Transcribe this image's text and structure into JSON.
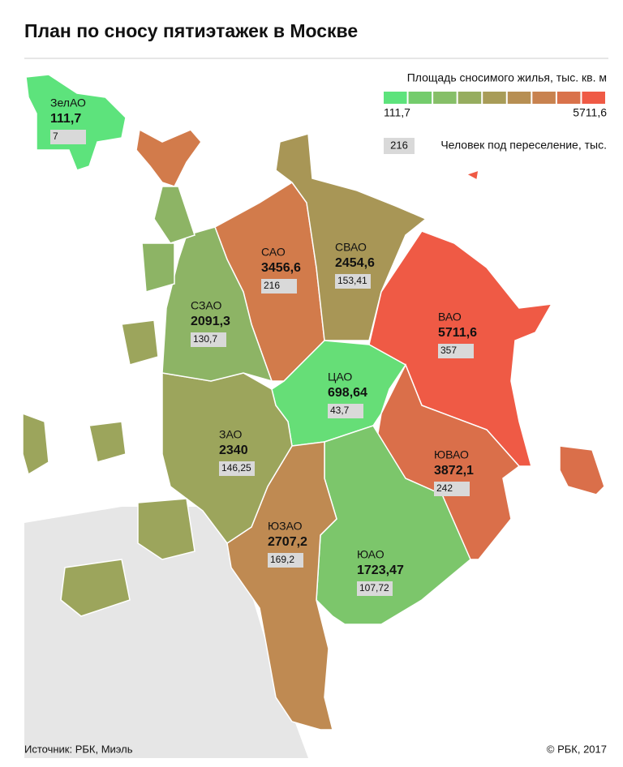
{
  "header": {
    "title": "План по сносу пятиэтажек в Москве"
  },
  "legend": {
    "title": "Площадь сносимого жилья, тыс. кв. м",
    "min_label": "111,7",
    "max_label": "5711,6",
    "colors": [
      "#5de37c",
      "#74cc6c",
      "#86bf68",
      "#96ad5f",
      "#a89c58",
      "#b78f53",
      "#c8824f",
      "#d9724b",
      "#ef5a45"
    ],
    "people_sample": "216",
    "people_label": "Человек под переселение, тыс."
  },
  "districts": [
    {
      "name": "ЗелАО",
      "area": "111,7",
      "people": "7",
      "color": "#5de37c"
    },
    {
      "name": "САО",
      "area": "3456,6",
      "people": "216",
      "color": "#d27b4b"
    },
    {
      "name": "СВАО",
      "area": "2454,6",
      "people": "153,41",
      "color": "#a89656"
    },
    {
      "name": "ВАО",
      "area": "5711,6",
      "people": "357",
      "color": "#ef5a45"
    },
    {
      "name": "ЦАО",
      "area": "698,64",
      "people": "43,7",
      "color": "#66de77"
    },
    {
      "name": "ЮВАО",
      "area": "3872,1",
      "people": "242",
      "color": "#da6f4a"
    },
    {
      "name": "ЮАО",
      "area": "1723,47",
      "people": "107,72",
      "color": "#7cc66b"
    },
    {
      "name": "ЮЗАО",
      "area": "2707,2",
      "people": "169,2",
      "color": "#bf8a52"
    },
    {
      "name": "ЗАО",
      "area": "2340",
      "people": "146,25",
      "color": "#9ca55c"
    },
    {
      "name": "СЗАО",
      "area": "2091,3",
      "people": "130,7",
      "color": "#8db465"
    }
  ],
  "footer": {
    "source": "Источник: РБК, Миэль",
    "copyright": "© РБК, 2017"
  }
}
